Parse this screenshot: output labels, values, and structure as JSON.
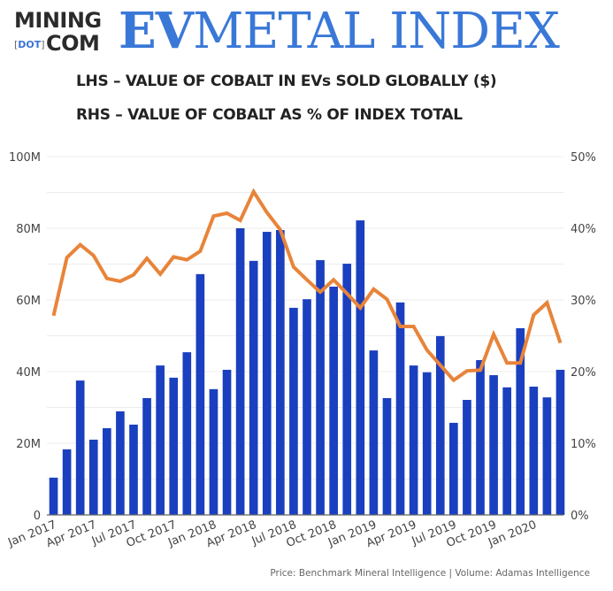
{
  "header": {
    "logo": {
      "line1": "MINING",
      "dot": "DOT",
      "line2": "COM"
    },
    "title_bold": "EV",
    "title_rest": "METAL INDEX",
    "subtitle_lhs": "LHS – VALUE OF COBALT IN EVs SOLD GLOBALLY ($)",
    "subtitle_rhs": "RHS – VALUE OF COBALT AS % OF INDEX TOTAL"
  },
  "source": "Price: Benchmark Mineral Intelligence | Volume: Adamas Intelligence",
  "colors": {
    "bar": "#1a3fbf",
    "line": "#e8843a",
    "title": "#3a78d8",
    "grid": "#ececec"
  },
  "chart_data": {
    "type": "bar+line",
    "title": "EV Metal Index – Cobalt",
    "x": [
      "Jan 2017",
      "Feb 2017",
      "Mar 2017",
      "Apr 2017",
      "May 2017",
      "Jun 2017",
      "Jul 2017",
      "Aug 2017",
      "Sep 2017",
      "Oct 2017",
      "Nov 2017",
      "Dec 2017",
      "Jan 2018",
      "Feb 2018",
      "Mar 2018",
      "Apr 2018",
      "May 2018",
      "Jun 2018",
      "Jul 2018",
      "Aug 2018",
      "Sep 2018",
      "Oct 2018",
      "Nov 2018",
      "Dec 2018",
      "Jan 2019",
      "Feb 2019",
      "Mar 2019",
      "Apr 2019",
      "May 2019",
      "Jun 2019",
      "Jul 2019",
      "Aug 2019",
      "Sep 2019",
      "Oct 2019",
      "Nov 2019",
      "Dec 2019",
      "Jan 2020",
      "Feb 2020",
      "Mar 2020"
    ],
    "x_tick_labels": [
      "Jan 2017",
      "Apr 2017",
      "Jul 2017",
      "Oct 2017",
      "Jan 2018",
      "Apr 2018",
      "Jul 2018",
      "Oct 2018",
      "Jan 2019",
      "Apr 2019",
      "Jul 2019",
      "Oct 2019",
      "Jan 2020"
    ],
    "series": [
      {
        "name": "Value of cobalt in EVs sold globally ($)",
        "type": "bar",
        "axis": "left",
        "unit": "M",
        "values": [
          10.4,
          18.3,
          37.5,
          21,
          24.2,
          28.9,
          25.2,
          32.6,
          41.7,
          38.3,
          45.4,
          67.2,
          35.1,
          40.5,
          80,
          70.9,
          79,
          79.5,
          57.8,
          60.2,
          71.1,
          63.7,
          70.1,
          82.2,
          45.9,
          32.6,
          59.3,
          41.7,
          39.8,
          49.9,
          25.7,
          32.1,
          43.2,
          39,
          35.6,
          52.1,
          35.8,
          32.8,
          40.5
        ]
      },
      {
        "name": "Value of cobalt as % of index total",
        "type": "line",
        "axis": "right",
        "unit": "%",
        "values": [
          27.8,
          35.9,
          37.7,
          36.2,
          33,
          32.6,
          33.5,
          35.8,
          33.6,
          36,
          35.6,
          36.8,
          41.7,
          42.1,
          41.1,
          45.1,
          42.2,
          39.8,
          34.6,
          32.8,
          31.1,
          32.8,
          30.9,
          28.9,
          31.5,
          30.1,
          26.3,
          26.3,
          23,
          20.9,
          18.8,
          20.1,
          20.2,
          25.2,
          21.2,
          21.2,
          27.9,
          29.6,
          24
        ]
      }
    ],
    "left_axis": {
      "ylim": [
        0,
        100
      ],
      "ticks": [
        0,
        20,
        40,
        60,
        80,
        100
      ],
      "tick_labels": [
        "0",
        "20M",
        "40M",
        "60M",
        "80M",
        "100M"
      ]
    },
    "right_axis": {
      "ylim": [
        0,
        50
      ],
      "ticks": [
        0,
        10,
        20,
        30,
        40,
        50
      ],
      "tick_labels": [
        "0%",
        "10%",
        "20%",
        "30%",
        "40%",
        "50%"
      ]
    },
    "grid": true,
    "legend": "none"
  }
}
